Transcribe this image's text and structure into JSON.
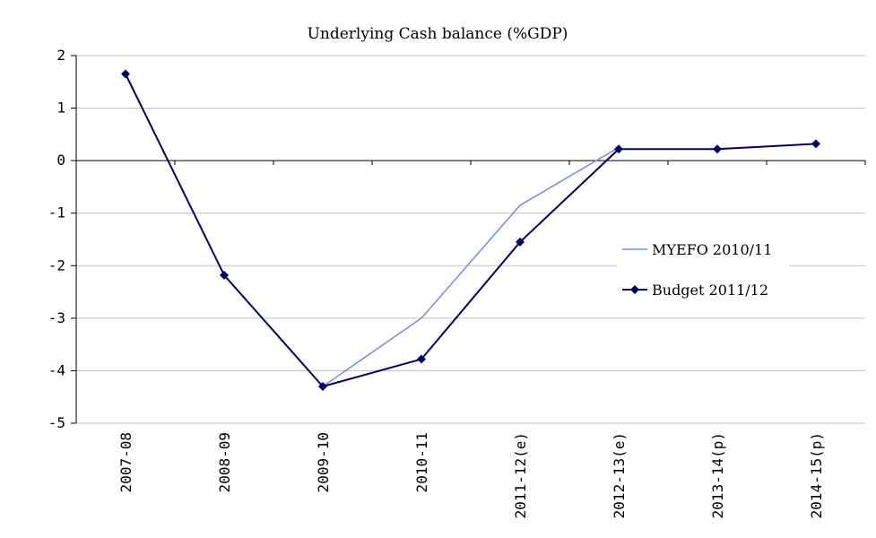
{
  "chart_data": {
    "type": "line",
    "title": "Underlying Cash balance (%GDP)",
    "xlabel": "",
    "ylabel": "",
    "categories": [
      "2007-08",
      "2008-09",
      "2009-10",
      "2010-11",
      "2011-12(e)",
      "2012-13(e)",
      "2013-14(p)",
      "2014-15(p)"
    ],
    "ylim": [
      -5,
      2
    ],
    "yticks": [
      "2",
      "1",
      "0",
      "-1",
      "-2",
      "-3",
      "-4",
      "-5"
    ],
    "grid": "horizontal",
    "legend_position": "right",
    "series": [
      {
        "name": "MYEFO 2010/11",
        "color": "#7b86e6",
        "markers": false,
        "values": [
          null,
          null,
          -4.3,
          -3.0,
          -0.85,
          0.25,
          null,
          null
        ]
      },
      {
        "name": "Budget 2011/12",
        "color": "#000066",
        "markers": true,
        "values": [
          1.65,
          -2.18,
          -4.3,
          -3.78,
          -1.55,
          0.22,
          0.22,
          0.32
        ]
      }
    ]
  }
}
